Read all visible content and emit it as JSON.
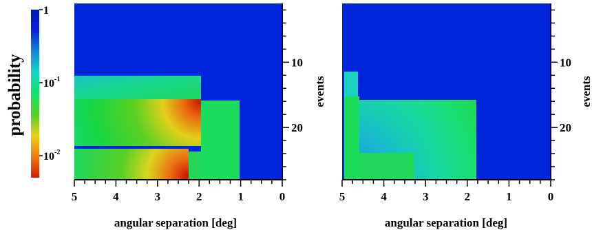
{
  "colorbar": {
    "title": "probability",
    "scale": "log",
    "range": [
      0.005,
      1
    ],
    "ticks": [
      {
        "value": 1,
        "base": "1",
        "exp": ""
      },
      {
        "value": 0.1,
        "base": "10",
        "exp": "-1"
      },
      {
        "value": 0.01,
        "base": "10",
        "exp": "-2"
      }
    ],
    "colormap": [
      "#d41a00",
      "#f07a10",
      "#e8d21a",
      "#54d024",
      "#12e26a",
      "#19d6c2",
      "#1488d6",
      "#0822de",
      "#001ab2"
    ]
  },
  "chart_data": [
    {
      "type": "heatmap",
      "panel": "left",
      "xlabel": "angular separation [deg]",
      "ylabel": "events",
      "xlim": [
        5,
        0
      ],
      "ylim": [
        28,
        1
      ],
      "x_ticks": [
        "5",
        "4",
        "3",
        "2",
        "1",
        "0"
      ],
      "y_ticks": [
        "10",
        "20"
      ],
      "background_value": 1,
      "regions": [
        {
          "x": [
            5,
            2.0
          ],
          "y": [
            12.5,
            16
          ],
          "value": 0.09,
          "gradient": "toward-upper-left"
        },
        {
          "x": [
            5,
            2.0
          ],
          "y": [
            16,
            24
          ],
          "value": 0.03,
          "gradient": "peak-near-x2",
          "peak_value": 0.006
        },
        {
          "x": [
            2.0,
            1.1
          ],
          "y": [
            16,
            28
          ],
          "value": 0.035
        },
        {
          "x": [
            5,
            2.35
          ],
          "y": [
            24,
            28
          ],
          "value": 0.03,
          "gradient": "peak-near-x2.5",
          "peak_value": 0.006
        },
        {
          "x": [
            2.35,
            2.0
          ],
          "y": [
            24,
            28
          ],
          "value": 0.035
        }
      ]
    },
    {
      "type": "heatmap",
      "panel": "right",
      "xlabel": "angular separation [deg]",
      "ylabel": "events",
      "xlim": [
        5,
        0
      ],
      "ylim": [
        28,
        1
      ],
      "x_ticks": [
        "5",
        "4",
        "3",
        "2",
        "1",
        "0"
      ],
      "y_ticks": [
        "10",
        "20"
      ],
      "background_value": 1,
      "regions": [
        {
          "x": [
            5,
            4.6
          ],
          "y": [
            12,
            16
          ],
          "value": 0.12
        },
        {
          "x": [
            5,
            4.6
          ],
          "y": [
            16,
            28
          ],
          "value": 0.035
        },
        {
          "x": [
            4.6,
            1.85
          ],
          "y": [
            16,
            28
          ],
          "value": 0.15,
          "gradient": "arc-centered-lower-left"
        },
        {
          "x": [
            4.6,
            3.3
          ],
          "y": [
            24.5,
            28
          ],
          "value": 0.04
        }
      ]
    }
  ]
}
